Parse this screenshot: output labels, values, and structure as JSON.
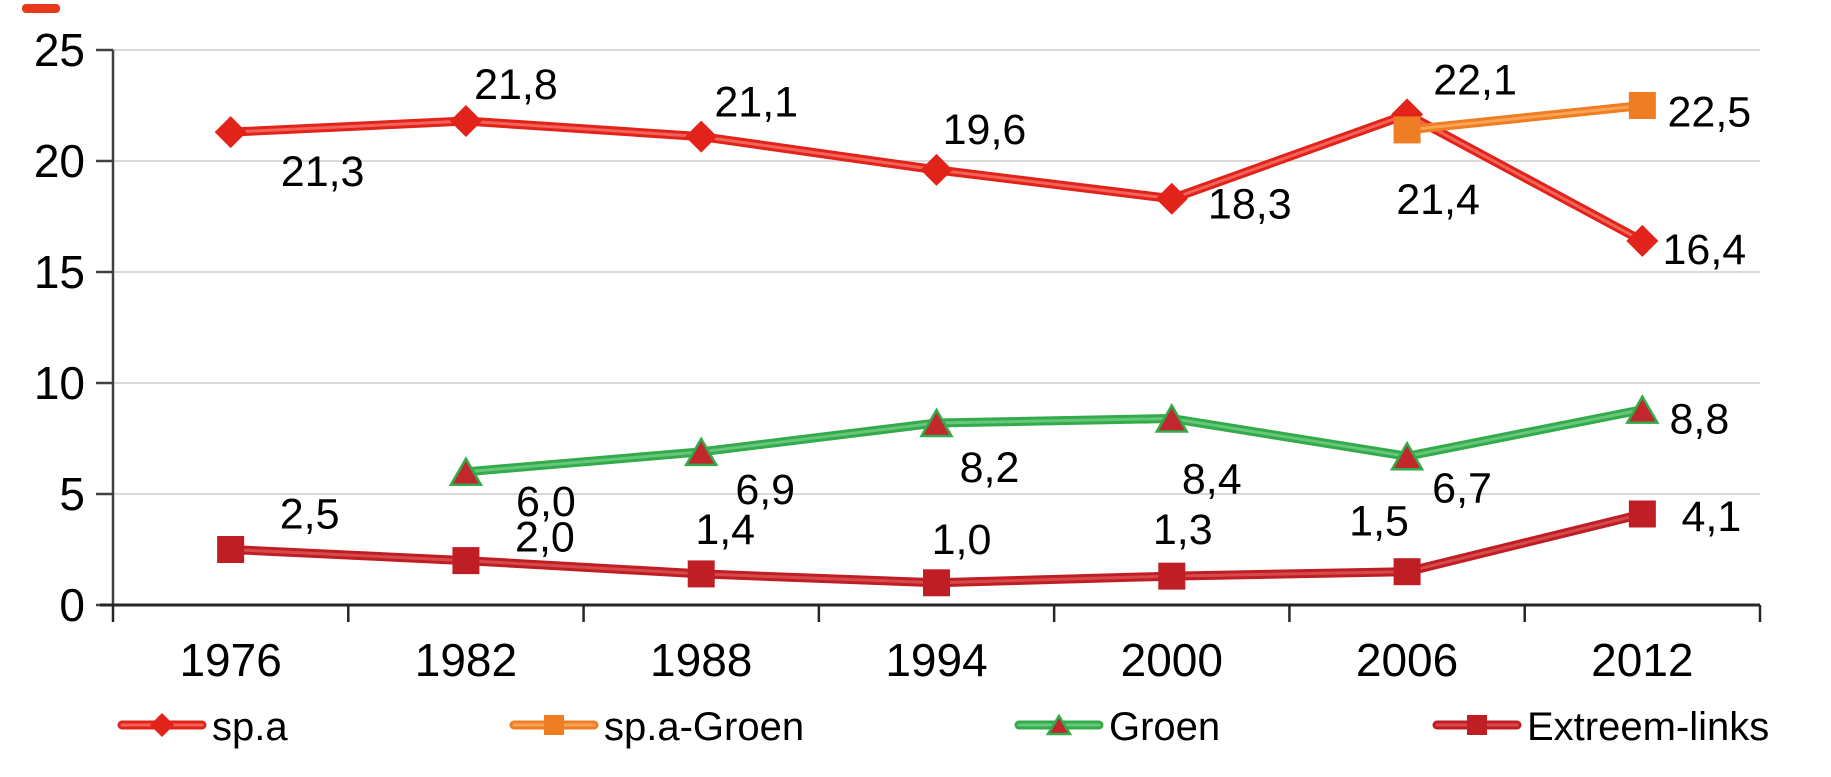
{
  "figure": {
    "background": "#ffffff",
    "corner_mark_color": "#e8391d",
    "gridline_color": "#d9d9d9",
    "y_axis_color": "#404040",
    "x_axis_color": "#262626",
    "text_color": "#000000"
  },
  "chart_data": {
    "type": "line",
    "title": "",
    "xlabel": "",
    "ylabel": "",
    "categories": [
      "1976",
      "1982",
      "1988",
      "1994",
      "2000",
      "2006",
      "2012"
    ],
    "ytick_values": [
      0,
      5,
      10,
      15,
      20,
      25
    ],
    "ytick_labels": [
      "0",
      "5",
      "10",
      "15",
      "20",
      "25"
    ],
    "ylim": [
      0,
      25
    ],
    "grid": "horizontal",
    "legend_position": "bottom",
    "series": [
      {
        "name": "sp.a",
        "color": "#e2231a",
        "highlight": "#f4695f",
        "marker": "diamond",
        "marker_color": "#e2231a",
        "values": [
          21.3,
          21.8,
          21.1,
          19.6,
          18.3,
          22.1,
          16.4
        ],
        "labels": [
          "21,3",
          "21,8",
          "21,1",
          "19,6",
          "18,3",
          "22,1",
          "16,4"
        ],
        "label_offset": [
          [
            92,
            40
          ],
          [
            50,
            -36
          ],
          [
            55,
            -34
          ],
          [
            48,
            -40
          ],
          [
            78,
            6
          ],
          [
            68,
            -34
          ],
          [
            62,
            9
          ]
        ]
      },
      {
        "name": "sp.a-Groen",
        "color": "#ee7d23",
        "highlight": "#f9a75a",
        "marker": "square",
        "marker_color": "#ee7d23",
        "values": [
          null,
          null,
          null,
          null,
          null,
          21.4,
          22.5
        ],
        "labels": [
          null,
          null,
          null,
          null,
          null,
          "21,4",
          "22,5"
        ],
        "label_offset": [
          null,
          null,
          null,
          null,
          null,
          [
            31,
            70
          ],
          [
            67,
            7
          ]
        ]
      },
      {
        "name": "Groen",
        "color": "#33ab4b",
        "highlight": "#6cc97f",
        "marker": "triangle",
        "marker_color": "#c1272d",
        "marker_stroke": "#33ab4b",
        "values": [
          null,
          6.0,
          6.9,
          8.2,
          8.4,
          6.7,
          8.8
        ],
        "labels": [
          null,
          "6,0",
          "6,9",
          "8,2",
          "8,4",
          "6,7",
          "8,8"
        ],
        "label_offset": [
          null,
          [
            80,
            30
          ],
          [
            64,
            38
          ],
          [
            53,
            45
          ],
          [
            40,
            61
          ],
          [
            55,
            32
          ],
          [
            57,
            10
          ]
        ]
      },
      {
        "name": "Extreem-links",
        "color": "#c01e25",
        "highlight": "#d94f50",
        "marker": "square",
        "marker_color": "#c01e25",
        "values": [
          2.5,
          2.0,
          1.4,
          1.0,
          1.3,
          1.5,
          4.1
        ],
        "labels": [
          "2,5",
          "2,0",
          "1,4",
          "1,0",
          "1,3",
          "1,5",
          "4,1"
        ],
        "label_offset": [
          [
            79,
            -35
          ],
          [
            79,
            -23
          ],
          [
            24,
            -44
          ],
          [
            25,
            -43
          ],
          [
            11,
            -46
          ],
          [
            -28,
            -50
          ],
          [
            69,
            3
          ]
        ]
      }
    ]
  }
}
